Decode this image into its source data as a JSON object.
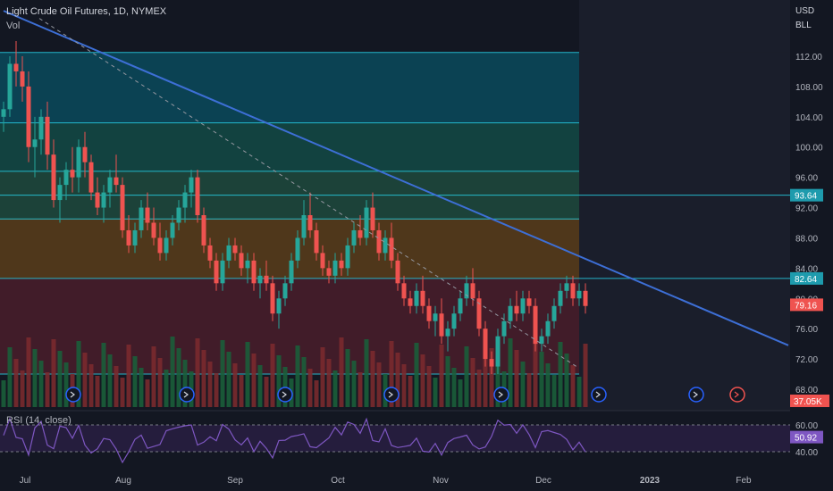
{
  "header": {
    "symbol_line": "Light Crude Oil Futures, 1D, NYMEX",
    "volume_label": "Vol",
    "currency": "USD",
    "unit": "BLL",
    "rsi_label": "RSI (14, close)"
  },
  "colors": {
    "background": "#131722",
    "up": "#26a69a",
    "down": "#ef5350",
    "trendline": "#3d6fd6",
    "level_line": "#26c6da",
    "rsi_line": "#7e57c2",
    "rsi_band": "#2a1f45"
  },
  "chart_data": {
    "type": "candlestick",
    "y_axis_ticks": [
      "112.00",
      "108.00",
      "104.00",
      "100.00",
      "96.00",
      "92.00",
      "88.00",
      "84.00",
      "80.00",
      "76.00",
      "72.00",
      "68.00"
    ],
    "x_axis_labels": [
      "Jul",
      "Aug",
      "Sep",
      "Oct",
      "Nov",
      "Dec",
      "2023",
      "Feb"
    ],
    "ylim": [
      64.5,
      119
    ],
    "price_labels": [
      {
        "value": 93.64,
        "text": "93.64",
        "color": "#1e9bad"
      },
      {
        "value": 82.64,
        "text": "82.64",
        "color": "#1e9bad"
      },
      {
        "value": 79.16,
        "text": "79.16",
        "color": "#ef5350"
      }
    ],
    "volume_label": "37.05K",
    "rsi": {
      "ticks": [
        "60.00",
        "40.00"
      ],
      "current": "50.92",
      "ylim": [
        30,
        70
      ]
    },
    "horizontal_levels": [
      112.5,
      103.2,
      96.8,
      93.64,
      90.5,
      82.64,
      70.0
    ],
    "zones": [
      {
        "from": 103.2,
        "to": 112.5,
        "color": "#0b4a5c"
      },
      {
        "from": 96.8,
        "to": 103.2,
        "color": "#134a45"
      },
      {
        "from": 90.5,
        "to": 96.8,
        "color": "#1f4a3d"
      },
      {
        "from": 82.64,
        "to": 90.5,
        "color": "#5a3d1a"
      },
      {
        "from": 70.0,
        "to": 82.64,
        "color": "#4a1d2a"
      }
    ],
    "trendline": {
      "from": {
        "day": 0,
        "price": 118
      },
      "to": {
        "day": 182,
        "price": 73.8
      }
    },
    "fib_dashed": {
      "from": {
        "day": 10,
        "price": 117
      },
      "to": {
        "day": 132,
        "price": 71
      }
    },
    "candles": [
      [
        104,
        106,
        102,
        105
      ],
      [
        105,
        112,
        104,
        111
      ],
      [
        111,
        114,
        108,
        110
      ],
      [
        110,
        112,
        106,
        108
      ],
      [
        108,
        110,
        98,
        100
      ],
      [
        100,
        104,
        96,
        101
      ],
      [
        101,
        105,
        99,
        104
      ],
      [
        104,
        106,
        97,
        99
      ],
      [
        99,
        101,
        92,
        93
      ],
      [
        93,
        96,
        90,
        95
      ],
      [
        95,
        98,
        93,
        97
      ],
      [
        97,
        100,
        94,
        96
      ],
      [
        96,
        101,
        94,
        100
      ],
      [
        100,
        102,
        96,
        98
      ],
      [
        98,
        99,
        93,
        94
      ],
      [
        94,
        96,
        91,
        92
      ],
      [
        92,
        95,
        90,
        94
      ],
      [
        94,
        97,
        92,
        96
      ],
      [
        96,
        99,
        94,
        95
      ],
      [
        95,
        96,
        88,
        89
      ],
      [
        89,
        91,
        86,
        87
      ],
      [
        87,
        90,
        86,
        89
      ],
      [
        89,
        93,
        88,
        92
      ],
      [
        92,
        94,
        89,
        90
      ],
      [
        90,
        92,
        87,
        88
      ],
      [
        88,
        90,
        85,
        86
      ],
      [
        86,
        89,
        85,
        88
      ],
      [
        88,
        91,
        87,
        90
      ],
      [
        90,
        93,
        89,
        92
      ],
      [
        92,
        95,
        90,
        94
      ],
      [
        94,
        97,
        92,
        96
      ],
      [
        96,
        97,
        90,
        91
      ],
      [
        91,
        92,
        86,
        87
      ],
      [
        87,
        88,
        84,
        85
      ],
      [
        85,
        86,
        81,
        82
      ],
      [
        82,
        86,
        81,
        85
      ],
      [
        85,
        88,
        84,
        87
      ],
      [
        87,
        88,
        85,
        86
      ],
      [
        86,
        87,
        83,
        84
      ],
      [
        84,
        86,
        82,
        85
      ],
      [
        85,
        86,
        81,
        82
      ],
      [
        82,
        84,
        80,
        83
      ],
      [
        83,
        85,
        81,
        82
      ],
      [
        82,
        83,
        77,
        78
      ],
      [
        78,
        81,
        76,
        80
      ],
      [
        80,
        83,
        79,
        82
      ],
      [
        82,
        86,
        81,
        85
      ],
      [
        85,
        89,
        84,
        88
      ],
      [
        88,
        93,
        87,
        91
      ],
      [
        91,
        94,
        88,
        89
      ],
      [
        89,
        90,
        85,
        86
      ],
      [
        86,
        87,
        83,
        84
      ],
      [
        84,
        85,
        82,
        83
      ],
      [
        83,
        86,
        82,
        85
      ],
      [
        85,
        86,
        83,
        84
      ],
      [
        84,
        88,
        83,
        87
      ],
      [
        87,
        90,
        86,
        89
      ],
      [
        89,
        91,
        87,
        88
      ],
      [
        88,
        93,
        87,
        92
      ],
      [
        92,
        94,
        88,
        89
      ],
      [
        89,
        90,
        85,
        86
      ],
      [
        86,
        89,
        85,
        88
      ],
      [
        88,
        90,
        84,
        85
      ],
      [
        85,
        86,
        81,
        82
      ],
      [
        82,
        83,
        79,
        80
      ],
      [
        80,
        81,
        78,
        79
      ],
      [
        79,
        82,
        78,
        81
      ],
      [
        81,
        83,
        78,
        79
      ],
      [
        79,
        80,
        76,
        77
      ],
      [
        77,
        79,
        75,
        78
      ],
      [
        78,
        80,
        74,
        75
      ],
      [
        75,
        77,
        73,
        76
      ],
      [
        76,
        79,
        75,
        78
      ],
      [
        78,
        81,
        77,
        80
      ],
      [
        80,
        83,
        79,
        82
      ],
      [
        82,
        84,
        79,
        80
      ],
      [
        80,
        81,
        75,
        76
      ],
      [
        76,
        77,
        71,
        72
      ],
      [
        72,
        73,
        70,
        71
      ],
      [
        71,
        76,
        70,
        75
      ],
      [
        75,
        78,
        74,
        77
      ],
      [
        77,
        80,
        76,
        79
      ],
      [
        79,
        81,
        77,
        78
      ],
      [
        78,
        81,
        77,
        80
      ],
      [
        80,
        81,
        78,
        79
      ],
      [
        79,
        80,
        73,
        74
      ],
      [
        74,
        76,
        73,
        75
      ],
      [
        75,
        78,
        74,
        77
      ],
      [
        77,
        80,
        76,
        79
      ],
      [
        79,
        82,
        78,
        81
      ],
      [
        81,
        83,
        80,
        82
      ],
      [
        82,
        83,
        79,
        80
      ],
      [
        80,
        82,
        79,
        81
      ],
      [
        81,
        82,
        78,
        79
      ]
    ]
  }
}
